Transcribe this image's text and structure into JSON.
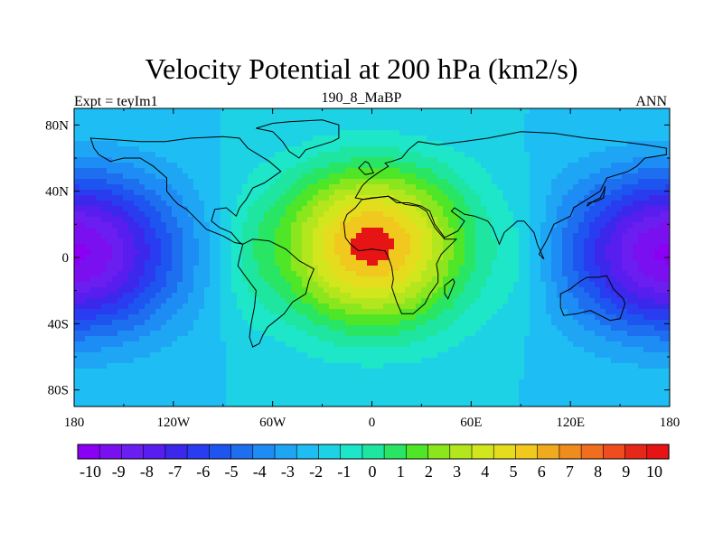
{
  "chart_data": {
    "type": "heatmap",
    "title": "Velocity Potential at 200 hPa (km2/s)",
    "left_string": "Expt = teyIm1",
    "center_string": "190_8_MaBP",
    "right_string": "ANN",
    "x_ticks": [
      "180",
      "120W",
      "60W",
      "0",
      "60E",
      "120E",
      "180"
    ],
    "x_tick_values": [
      -180,
      -120,
      -60,
      0,
      60,
      120,
      180
    ],
    "y_ticks": [
      "80N",
      "40N",
      "0",
      "40S",
      "80S"
    ],
    "y_tick_values": [
      80,
      40,
      0,
      -40,
      -80
    ],
    "xlim": [
      -180,
      180
    ],
    "ylim": [
      -90,
      90
    ],
    "field": {
      "description": "velocity potential anomaly field",
      "max": {
        "lon": 0,
        "lat": 10,
        "value": 10.5
      },
      "min_west": {
        "lon": -180,
        "lat": 5,
        "value": -10
      },
      "min_east": {
        "lon": 180,
        "lat": 5,
        "value": -10
      }
    },
    "colorbar": {
      "labels": [
        "-10",
        "-9",
        "-8",
        "-7",
        "-6",
        "-5",
        "-4",
        "-3",
        "-2",
        "-1",
        "0",
        "1",
        "2",
        "3",
        "4",
        "5",
        "6",
        "7",
        "8",
        "9",
        "10"
      ],
      "levels": [
        -10,
        -9,
        -8,
        -7,
        -6,
        -5,
        -4,
        -3,
        -2,
        -1,
        0,
        1,
        2,
        3,
        4,
        5,
        6,
        7,
        8,
        9,
        10
      ],
      "colors": [
        "#8a00f5",
        "#7a10f0",
        "#6a1ef0",
        "#581ef0",
        "#3c28eb",
        "#2a3cf0",
        "#1e55f0",
        "#1e6ef0",
        "#1e8cf5",
        "#1ea6f5",
        "#1ebef5",
        "#1ed2e6",
        "#1ee6c8",
        "#1ee6a0",
        "#28e664",
        "#50e628",
        "#8ce61e",
        "#b4e61e",
        "#d2e61e",
        "#e6dc1e",
        "#f0c81e",
        "#f0aa1e",
        "#f08c1e",
        "#f06e1e",
        "#f04c1e",
        "#e62818",
        "#e61414"
      ]
    }
  }
}
